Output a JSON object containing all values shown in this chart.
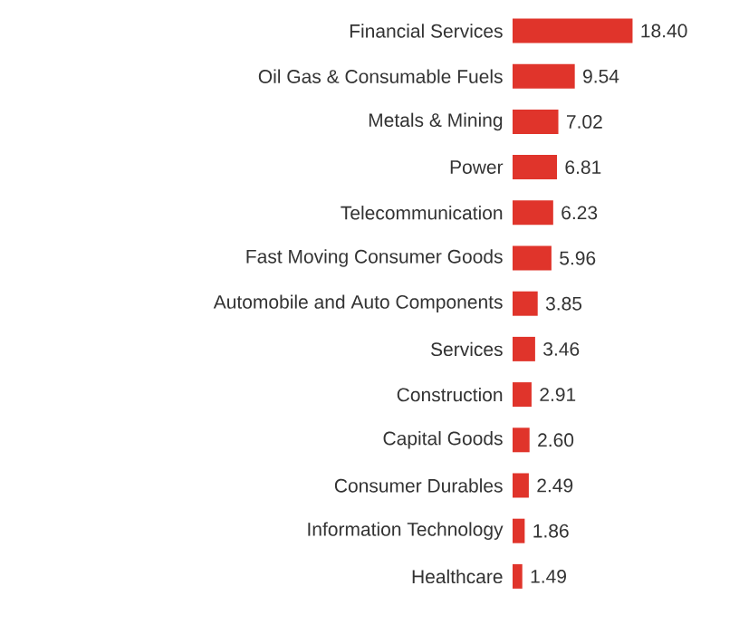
{
  "chart_data": {
    "type": "bar",
    "orientation": "horizontal",
    "tick_labels": "y",
    "color": "#e0342b",
    "categories": [
      "Financial Services",
      "Oil Gas & Consumable Fuels",
      "Metals & Mining",
      "Power",
      "Telecommunication",
      "Fast Moving Consumer Goods",
      "Automobile and Auto Components",
      "Services",
      "Construction",
      "Capital Goods",
      "Consumer Durables",
      "Information Technology",
      "Healthcare"
    ],
    "values": [
      18.4,
      9.54,
      7.02,
      6.81,
      6.23,
      5.96,
      3.85,
      3.46,
      2.91,
      2.6,
      2.49,
      1.86,
      1.49
    ],
    "value_labels": [
      "18.40",
      "9.54",
      "7.02",
      "6.81",
      "6.23",
      "5.96",
      "3.85",
      "3.46",
      "2.91",
      "2.60",
      "2.49",
      "1.86",
      "1.49"
    ]
  }
}
